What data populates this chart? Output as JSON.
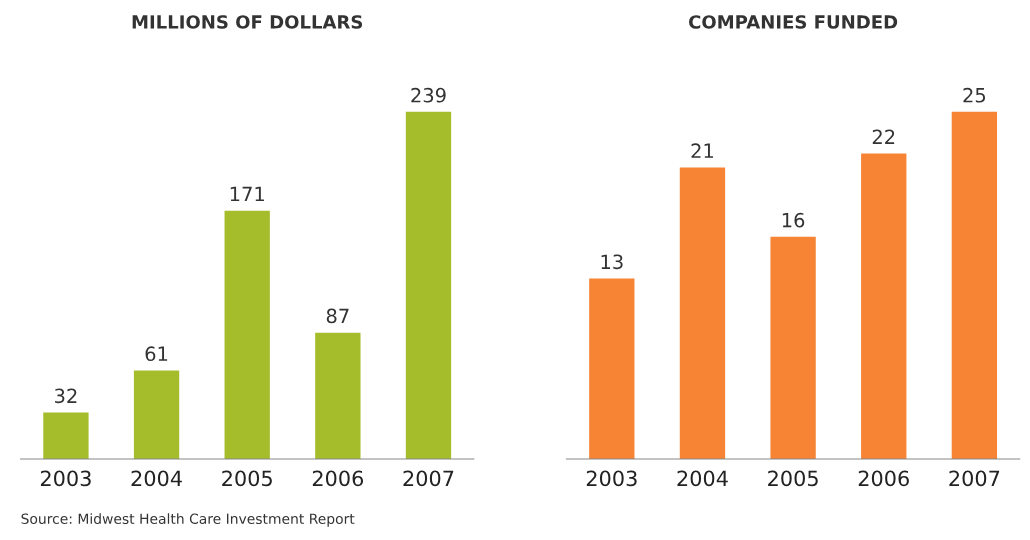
{
  "chart_data": [
    {
      "type": "bar",
      "title": "MILLIONS OF DOLLARS",
      "categories": [
        "2003",
        "2004",
        "2005",
        "2006",
        "2007"
      ],
      "values": [
        32,
        61,
        171,
        87,
        239
      ],
      "color": "#a5bd2b",
      "data_labels": true,
      "annotations": [
        "Source: Midwest Health Care Investment Report"
      ]
    },
    {
      "type": "bar",
      "title": "COMPANIES FUNDED",
      "categories": [
        "2003",
        "2004",
        "2005",
        "2006",
        "2007"
      ],
      "values": [
        13,
        21,
        16,
        22,
        25
      ],
      "color": "#f78434",
      "data_labels": true
    }
  ]
}
